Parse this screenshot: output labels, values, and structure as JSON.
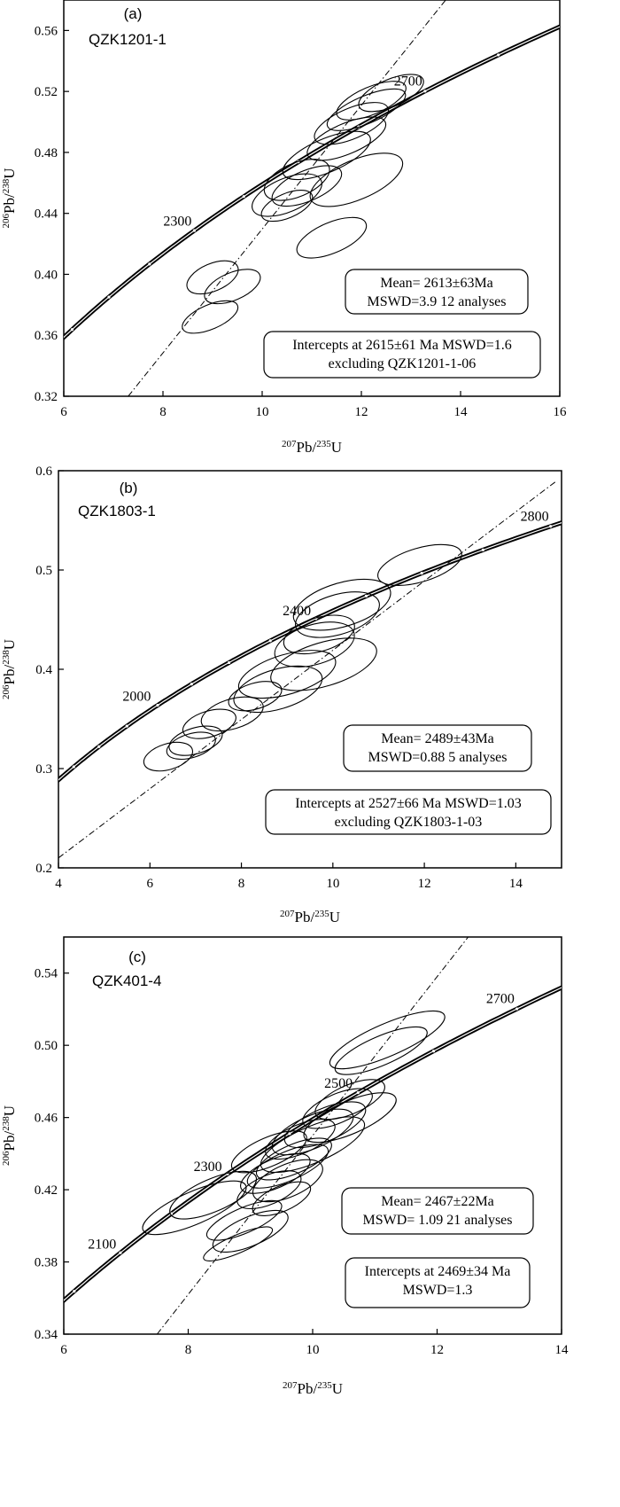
{
  "chart_data": [
    {
      "type": "scatter",
      "panel_label": "(a)",
      "sample": "QZK1201-1",
      "xlabel": "207Pb/235U",
      "ylabel": "206Pb/238U",
      "xlim": [
        6,
        16
      ],
      "ylim": [
        0.32,
        0.58
      ],
      "xticks": [
        "6",
        "8",
        "10",
        "12",
        "14",
        "16"
      ],
      "yticks": [
        "0.32",
        "0.36",
        "0.40",
        "0.44",
        "0.48",
        "0.52",
        "0.56"
      ],
      "concordia_labels": [
        {
          "age": "2300",
          "x": 8.65,
          "y": 0.429
        },
        {
          "age": "2700",
          "x": 13.3,
          "y": 0.521
        }
      ],
      "discordia": {
        "x1": 7.3,
        "y1": 0.32,
        "x2": 13.7,
        "y2": 0.58
      },
      "ellipses": [
        {
          "x": 12.6,
          "y": 0.519,
          "rx": 0.7,
          "ry": 0.009
        },
        {
          "x": 12.2,
          "y": 0.514,
          "rx": 0.75,
          "ry": 0.009
        },
        {
          "x": 12.1,
          "y": 0.508,
          "rx": 0.85,
          "ry": 0.009
        },
        {
          "x": 11.8,
          "y": 0.499,
          "rx": 0.8,
          "ry": 0.01
        },
        {
          "x": 11.7,
          "y": 0.489,
          "rx": 0.85,
          "ry": 0.01
        },
        {
          "x": 11.3,
          "y": 0.478,
          "rx": 0.95,
          "ry": 0.011
        },
        {
          "x": 11.9,
          "y": 0.462,
          "rx": 1.0,
          "ry": 0.013
        },
        {
          "x": 10.7,
          "y": 0.462,
          "rx": 0.7,
          "ry": 0.011
        },
        {
          "x": 10.9,
          "y": 0.458,
          "rx": 0.75,
          "ry": 0.01
        },
        {
          "x": 10.5,
          "y": 0.452,
          "rx": 0.75,
          "ry": 0.011
        },
        {
          "x": 10.5,
          "y": 0.445,
          "rx": 0.55,
          "ry": 0.008
        },
        {
          "x": 11.4,
          "y": 0.424,
          "rx": 0.75,
          "ry": 0.01
        },
        {
          "x": 9.0,
          "y": 0.398,
          "rx": 0.55,
          "ry": 0.009
        },
        {
          "x": 9.4,
          "y": 0.392,
          "rx": 0.6,
          "ry": 0.009
        },
        {
          "x": 8.95,
          "y": 0.372,
          "rx": 0.6,
          "ry": 0.008
        }
      ],
      "mean_box": [
        "Mean= 2613±63Ma",
        "MSWD=3.9  12 analyses"
      ],
      "intercept_box": [
        "Intercepts at 2615±61 Ma   MSWD=1.6",
        "excluding QZK1201-1-06"
      ]
    },
    {
      "type": "scatter",
      "panel_label": "(b)",
      "sample": "QZK1803-1",
      "xlabel": "207Pb/235U",
      "ylabel": "206Pb/238U",
      "xlim": [
        4,
        15
      ],
      "ylim": [
        0.2,
        0.6
      ],
      "xticks": [
        "4",
        "6",
        "8",
        "10",
        "12",
        "14"
      ],
      "yticks": [
        "0.2",
        "0.3",
        "0.4",
        "0.5",
        "0.6"
      ],
      "concordia_labels": [
        {
          "age": "2000",
          "x": 6.1,
          "y": 0.364
        },
        {
          "age": "2400",
          "x": 9.6,
          "y": 0.45
        },
        {
          "age": "2800",
          "x": 14.8,
          "y": 0.545
        }
      ],
      "discordia": {
        "x1": 4.0,
        "y1": 0.21,
        "x2": 14.9,
        "y2": 0.59
      },
      "ellipses": [
        {
          "x": 11.9,
          "y": 0.505,
          "rx": 0.95,
          "ry": 0.017
        },
        {
          "x": 10.2,
          "y": 0.465,
          "rx": 1.1,
          "ry": 0.022
        },
        {
          "x": 10.1,
          "y": 0.455,
          "rx": 0.95,
          "ry": 0.02
        },
        {
          "x": 9.7,
          "y": 0.435,
          "rx": 0.8,
          "ry": 0.017
        },
        {
          "x": 9.6,
          "y": 0.425,
          "rx": 0.9,
          "ry": 0.02
        },
        {
          "x": 9.8,
          "y": 0.405,
          "rx": 1.2,
          "ry": 0.022
        },
        {
          "x": 9.0,
          "y": 0.395,
          "rx": 1.1,
          "ry": 0.02
        },
        {
          "x": 8.8,
          "y": 0.38,
          "rx": 1.0,
          "ry": 0.02
        },
        {
          "x": 8.3,
          "y": 0.373,
          "rx": 0.6,
          "ry": 0.013
        },
        {
          "x": 7.8,
          "y": 0.355,
          "rx": 0.7,
          "ry": 0.015
        },
        {
          "x": 7.3,
          "y": 0.345,
          "rx": 0.6,
          "ry": 0.013
        },
        {
          "x": 7.0,
          "y": 0.328,
          "rx": 0.6,
          "ry": 0.013
        },
        {
          "x": 6.9,
          "y": 0.323,
          "rx": 0.55,
          "ry": 0.012
        },
        {
          "x": 6.4,
          "y": 0.312,
          "rx": 0.55,
          "ry": 0.013
        }
      ],
      "mean_box": [
        "Mean= 2489±43Ma",
        "MSWD=0.88  5 analyses"
      ],
      "intercept_box": [
        "Intercepts at 2527±66 Ma   MSWD=1.03",
        "excluding QZK1803-1-03"
      ]
    },
    {
      "type": "scatter",
      "panel_label": "(c)",
      "sample": "QZK401-4",
      "xlabel": "207Pb/235U",
      "ylabel": "206Pb/238U",
      "xlim": [
        6,
        14
      ],
      "ylim": [
        0.34,
        0.56
      ],
      "xticks": [
        "6",
        "8",
        "10",
        "12",
        "14"
      ],
      "yticks": [
        "0.34",
        "0.38",
        "0.42",
        "0.46",
        "0.50",
        "0.54"
      ],
      "concordia_labels": [
        {
          "age": "2100",
          "x": 6.9,
          "y": 0.385
        },
        {
          "age": "2300",
          "x": 8.6,
          "y": 0.428
        },
        {
          "age": "2500",
          "x": 10.7,
          "y": 0.474
        },
        {
          "age": "2700",
          "x": 13.3,
          "y": 0.521
        }
      ],
      "discordia": {
        "x1": 7.5,
        "y1": 0.34,
        "x2": 12.5,
        "y2": 0.56
      },
      "ellipses": [
        {
          "x": 11.2,
          "y": 0.503,
          "rx": 1.0,
          "ry": 0.009
        },
        {
          "x": 11.1,
          "y": 0.497,
          "rx": 0.8,
          "ry": 0.008
        },
        {
          "x": 10.6,
          "y": 0.47,
          "rx": 0.6,
          "ry": 0.008
        },
        {
          "x": 10.4,
          "y": 0.465,
          "rx": 0.6,
          "ry": 0.008
        },
        {
          "x": 10.6,
          "y": 0.46,
          "rx": 0.8,
          "ry": 0.009
        },
        {
          "x": 10.2,
          "y": 0.456,
          "rx": 0.7,
          "ry": 0.009
        },
        {
          "x": 10.0,
          "y": 0.452,
          "rx": 0.7,
          "ry": 0.009
        },
        {
          "x": 9.8,
          "y": 0.448,
          "rx": 0.6,
          "ry": 0.008
        },
        {
          "x": 10.0,
          "y": 0.445,
          "rx": 0.9,
          "ry": 0.01
        },
        {
          "x": 9.3,
          "y": 0.441,
          "rx": 0.65,
          "ry": 0.008
        },
        {
          "x": 9.7,
          "y": 0.437,
          "rx": 0.65,
          "ry": 0.008
        },
        {
          "x": 9.6,
          "y": 0.433,
          "rx": 0.7,
          "ry": 0.008
        },
        {
          "x": 9.4,
          "y": 0.429,
          "rx": 0.6,
          "ry": 0.008
        },
        {
          "x": 9.6,
          "y": 0.425,
          "rx": 0.6,
          "ry": 0.009
        },
        {
          "x": 9.3,
          "y": 0.42,
          "rx": 0.55,
          "ry": 0.008
        },
        {
          "x": 9.5,
          "y": 0.415,
          "rx": 0.5,
          "ry": 0.007
        },
        {
          "x": 8.4,
          "y": 0.417,
          "rx": 0.75,
          "ry": 0.009
        },
        {
          "x": 8.1,
          "y": 0.41,
          "rx": 0.9,
          "ry": 0.009
        },
        {
          "x": 8.9,
          "y": 0.403,
          "rx": 0.65,
          "ry": 0.007
        },
        {
          "x": 9.0,
          "y": 0.397,
          "rx": 0.65,
          "ry": 0.008
        },
        {
          "x": 8.8,
          "y": 0.39,
          "rx": 0.6,
          "ry": 0.005
        }
      ],
      "mean_box": [
        "Mean= 2467±22Ma",
        "MSWD= 1.09  21 analyses"
      ],
      "intercept_box": [
        "Intercepts at 2469±34 Ma",
        "MSWD=1.3"
      ]
    }
  ]
}
